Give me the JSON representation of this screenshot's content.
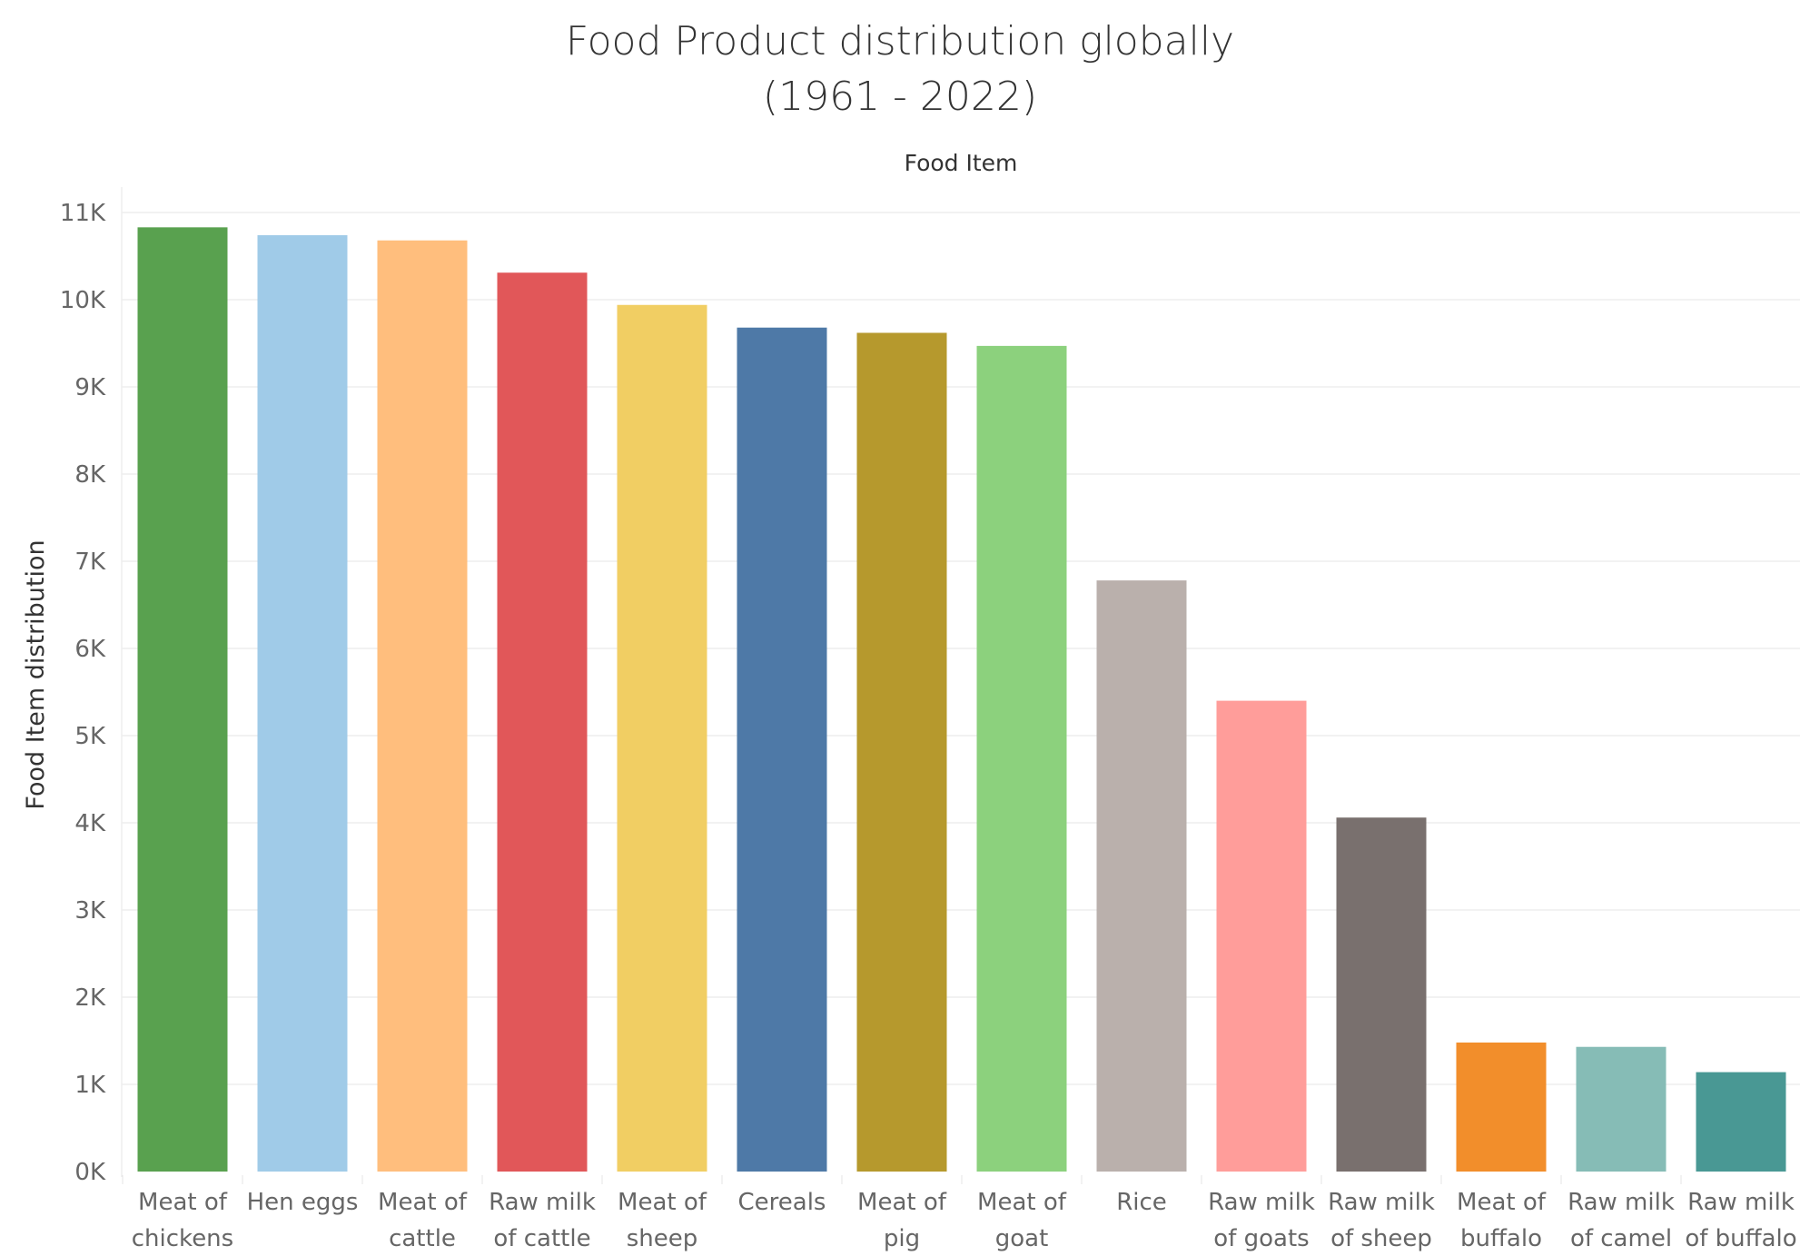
{
  "chart_data": {
    "type": "bar",
    "title": "Food Product distribution globally",
    "subtitle": "(1961 - 2022)",
    "header": "Food Item",
    "xlabel": "",
    "ylabel": "Food Item distribution",
    "ylim": [
      0,
      11000
    ],
    "yticks": [
      0,
      1000,
      2000,
      3000,
      4000,
      5000,
      6000,
      7000,
      8000,
      9000,
      10000,
      11000
    ],
    "ytick_labels": [
      "0K",
      "1K",
      "2K",
      "3K",
      "4K",
      "5K",
      "6K",
      "7K",
      "8K",
      "9K",
      "10K",
      "11K"
    ],
    "grid": true,
    "categories": [
      "Meat of chickens",
      "Hen eggs",
      "Meat of cattle",
      "Raw milk of cattle",
      "Meat of sheep",
      "Cereals",
      "Meat of pig",
      "Meat of goat",
      "Rice",
      "Raw milk of goats",
      "Raw milk of sheep",
      "Meat of buffalo",
      "Raw milk of camel",
      "Raw milk of buffalo"
    ],
    "category_label_lines": [
      [
        "Meat of",
        "chickens"
      ],
      [
        "Hen eggs"
      ],
      [
        "Meat of",
        "cattle"
      ],
      [
        "Raw milk",
        "of cattle"
      ],
      [
        "Meat of",
        "sheep"
      ],
      [
        "Cereals"
      ],
      [
        "Meat of",
        "pig"
      ],
      [
        "Meat of",
        "goat"
      ],
      [
        "Rice"
      ],
      [
        "Raw milk",
        "of goats"
      ],
      [
        "Raw milk",
        "of sheep"
      ],
      [
        "Meat of",
        "buffalo"
      ],
      [
        "Raw milk",
        "of camel"
      ],
      [
        "Raw milk",
        "of buffalo"
      ]
    ],
    "values": [
      10830,
      10740,
      10680,
      10310,
      9940,
      9680,
      9620,
      9470,
      6780,
      5400,
      4060,
      1480,
      1430,
      1140
    ],
    "colors": [
      "#59a14f",
      "#a0cbe8",
      "#ffbe7d",
      "#e15759",
      "#f1ce63",
      "#4e79a7",
      "#b6992d",
      "#8cd17d",
      "#bab0ac",
      "#ff9d9a",
      "#79706e",
      "#f28e2b",
      "#86bcb6",
      "#499894"
    ]
  }
}
